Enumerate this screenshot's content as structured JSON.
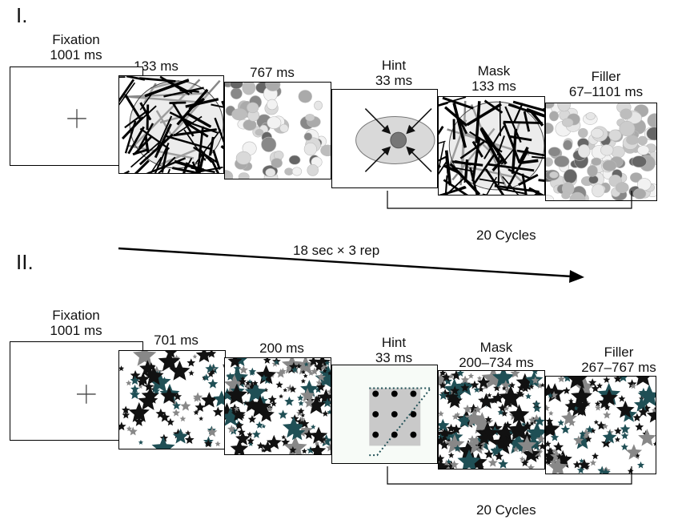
{
  "panel_one": {
    "label": "I.",
    "frames": [
      {
        "id": "fixation",
        "lines": [
          "Fixation",
          "1001 ms"
        ]
      },
      {
        "id": "noise",
        "lines": [
          "133 ms"
        ]
      },
      {
        "id": "dots",
        "lines": [
          "767 ms"
        ]
      },
      {
        "id": "hint",
        "lines": [
          "Hint",
          "33 ms"
        ]
      },
      {
        "id": "mask",
        "lines": [
          "Mask",
          "133 ms"
        ]
      },
      {
        "id": "filler",
        "lines": [
          "Filler",
          "67–1101 ms"
        ]
      }
    ],
    "cycles_label": "20 Cycles"
  },
  "timeline": {
    "label": "18 sec × 3 rep"
  },
  "panel_two": {
    "label": "II.",
    "frames": [
      {
        "id": "fixation",
        "lines": [
          "Fixation",
          "1001 ms"
        ]
      },
      {
        "id": "stars-a",
        "lines": [
          "701 ms"
        ]
      },
      {
        "id": "stars-b",
        "lines": [
          "200 ms"
        ]
      },
      {
        "id": "hint",
        "lines": [
          "Hint",
          "33 ms"
        ]
      },
      {
        "id": "mask",
        "lines": [
          "Mask",
          "200–734 ms"
        ]
      },
      {
        "id": "filler",
        "lines": [
          "Filler",
          "267–767 ms"
        ]
      }
    ],
    "cycles_label": "20 Cycles"
  },
  "colors": {
    "teal": "#1f4f55",
    "gray": "#888888",
    "light_gray": "#cfcfcf",
    "black": "#111111"
  }
}
